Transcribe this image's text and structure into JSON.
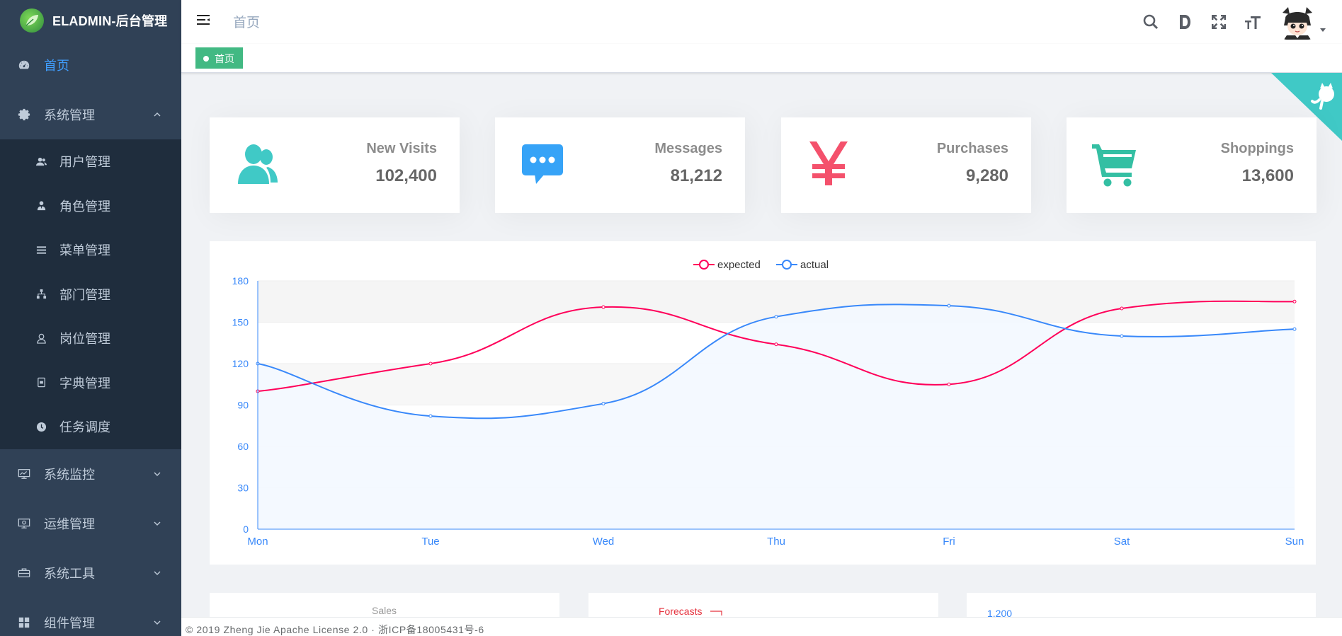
{
  "app": {
    "title": "ELADMIN-后台管理"
  },
  "sidebar": {
    "items": [
      {
        "label": "首页",
        "icon": "dashboard-icon",
        "active": true
      },
      {
        "label": "系统管理",
        "icon": "gear-icon",
        "expanded": true,
        "children": [
          {
            "label": "用户管理",
            "icon": "users-icon"
          },
          {
            "label": "角色管理",
            "icon": "role-icon"
          },
          {
            "label": "菜单管理",
            "icon": "menu-icon"
          },
          {
            "label": "部门管理",
            "icon": "dept-icon"
          },
          {
            "label": "岗位管理",
            "icon": "post-icon"
          },
          {
            "label": "字典管理",
            "icon": "dictionary-icon"
          },
          {
            "label": "任务调度",
            "icon": "timing-icon"
          }
        ]
      },
      {
        "label": "系统监控",
        "icon": "monitor-icon",
        "expanded": false
      },
      {
        "label": "运维管理",
        "icon": "ops-icon",
        "expanded": false
      },
      {
        "label": "系统工具",
        "icon": "tools-icon",
        "expanded": false
      },
      {
        "label": "组件管理",
        "icon": "components-icon",
        "expanded": false
      }
    ]
  },
  "navbar": {
    "breadcrumb": "首页",
    "icons": [
      "search-icon",
      "doc-icon",
      "fullscreen-icon",
      "font-size-icon"
    ]
  },
  "tags": {
    "active": "首页"
  },
  "cards": [
    {
      "label": "New Visits",
      "value": "102,400",
      "icon": "peoples-icon",
      "color": "#40c9c6"
    },
    {
      "label": "Messages",
      "value": "81,212",
      "icon": "message-icon",
      "color": "#36a3f7"
    },
    {
      "label": "Purchases",
      "value": "9,280",
      "icon": "money-icon",
      "color": "#f4516c"
    },
    {
      "label": "Shoppings",
      "value": "13,600",
      "icon": "shopping-icon",
      "color": "#34bfa3"
    }
  ],
  "chart_data": {
    "type": "line",
    "categories": [
      "Mon",
      "Tue",
      "Wed",
      "Thu",
      "Fri",
      "Sat",
      "Sun"
    ],
    "series": [
      {
        "name": "expected",
        "values": [
          100,
          120,
          161,
          134,
          105,
          160,
          165
        ],
        "color": "#FF005A"
      },
      {
        "name": "actual",
        "values": [
          120,
          82,
          91,
          154,
          162,
          140,
          145
        ],
        "color": "#3888fa"
      }
    ],
    "yticks": [
      "0",
      "30",
      "60",
      "90",
      "120",
      "150",
      "180"
    ],
    "ylim": [
      0,
      180
    ],
    "legend_position": "top-center",
    "smooth": true
  },
  "bottom_charts": {
    "sales_label": "Sales",
    "forecasts_label": "Forecasts",
    "value_label": "1,200"
  },
  "footer": {
    "text": "© 2019 Zheng Jie Apache License 2.0 · 浙ICP备18005431号-6"
  }
}
